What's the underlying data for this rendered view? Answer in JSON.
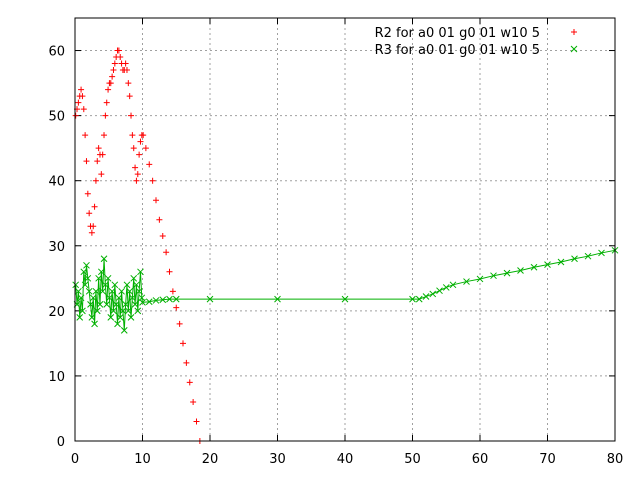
{
  "chart_data": {
    "type": "scatter",
    "title": "",
    "xlabel": "",
    "ylabel": "",
    "xlim": [
      0,
      80
    ],
    "ylim": [
      0,
      65
    ],
    "xticks": [
      0,
      10,
      20,
      30,
      40,
      50,
      60,
      70,
      80
    ],
    "yticks": [
      0,
      10,
      20,
      30,
      40,
      50,
      60
    ],
    "grid": true,
    "legend_position": "top-right",
    "series": [
      {
        "name": "R2 for a0 01 g0 01 w10 5",
        "color": "#ff0000",
        "marker": "plus",
        "line": false,
        "points": [
          [
            0.1,
            50
          ],
          [
            0.3,
            51
          ],
          [
            0.5,
            52
          ],
          [
            0.7,
            53
          ],
          [
            0.9,
            54
          ],
          [
            1.1,
            53
          ],
          [
            1.3,
            51
          ],
          [
            1.5,
            47
          ],
          [
            1.7,
            43
          ],
          [
            1.9,
            38
          ],
          [
            2.1,
            35
          ],
          [
            2.3,
            33
          ],
          [
            2.5,
            32
          ],
          [
            2.7,
            33
          ],
          [
            2.9,
            36
          ],
          [
            3.1,
            40
          ],
          [
            3.3,
            43
          ],
          [
            3.5,
            45
          ],
          [
            3.7,
            44
          ],
          [
            3.9,
            41
          ],
          [
            4.1,
            44
          ],
          [
            4.3,
            47
          ],
          [
            4.5,
            50
          ],
          [
            4.7,
            52
          ],
          [
            4.9,
            54
          ],
          [
            5.1,
            55
          ],
          [
            5.3,
            55
          ],
          [
            5.5,
            56
          ],
          [
            5.7,
            57
          ],
          [
            5.9,
            58
          ],
          [
            6.1,
            59
          ],
          [
            6.3,
            60
          ],
          [
            6.5,
            60
          ],
          [
            6.7,
            59
          ],
          [
            6.9,
            58
          ],
          [
            7.1,
            57
          ],
          [
            7.3,
            57
          ],
          [
            7.5,
            58
          ],
          [
            7.7,
            57
          ],
          [
            7.9,
            55
          ],
          [
            8.1,
            53
          ],
          [
            8.3,
            50
          ],
          [
            8.5,
            47
          ],
          [
            8.7,
            45
          ],
          [
            8.9,
            42
          ],
          [
            9.1,
            40
          ],
          [
            9.3,
            41
          ],
          [
            9.5,
            44
          ],
          [
            9.7,
            46
          ],
          [
            9.9,
            47
          ],
          [
            10.1,
            47
          ],
          [
            10.5,
            45
          ],
          [
            11.0,
            42.5
          ],
          [
            11.5,
            40
          ],
          [
            12.0,
            37
          ],
          [
            12.5,
            34
          ],
          [
            13.0,
            31.5
          ],
          [
            13.5,
            29
          ],
          [
            14.0,
            26
          ],
          [
            14.5,
            23
          ],
          [
            15.0,
            20.5
          ],
          [
            15.5,
            18
          ],
          [
            16.0,
            15
          ],
          [
            16.5,
            12
          ],
          [
            17.0,
            9
          ],
          [
            17.5,
            6
          ],
          [
            18.0,
            3
          ],
          [
            18.5,
            0
          ]
        ]
      },
      {
        "name": "R3 for a0 01 g0 01 w10 5",
        "color": "#00b000",
        "marker": "cross",
        "line": true,
        "points": [
          [
            0.1,
            24
          ],
          [
            0.3,
            21
          ],
          [
            0.5,
            23
          ],
          [
            0.7,
            19
          ],
          [
            0.9,
            22
          ],
          [
            1.1,
            20
          ],
          [
            1.3,
            26
          ],
          [
            1.5,
            24
          ],
          [
            1.7,
            27
          ],
          [
            1.9,
            25
          ],
          [
            2.1,
            23
          ],
          [
            2.3,
            21
          ],
          [
            2.5,
            19
          ],
          [
            2.7,
            22
          ],
          [
            2.9,
            18
          ],
          [
            3.1,
            23
          ],
          [
            3.3,
            20
          ],
          [
            3.5,
            25
          ],
          [
            3.7,
            21
          ],
          [
            3.9,
            26
          ],
          [
            4.1,
            23
          ],
          [
            4.3,
            28
          ],
          [
            4.5,
            24
          ],
          [
            4.7,
            21
          ],
          [
            4.9,
            25
          ],
          [
            5.1,
            22
          ],
          [
            5.3,
            19
          ],
          [
            5.5,
            23
          ],
          [
            5.7,
            20
          ],
          [
            5.9,
            24
          ],
          [
            6.1,
            21
          ],
          [
            6.3,
            18
          ],
          [
            6.5,
            22
          ],
          [
            6.7,
            19
          ],
          [
            6.9,
            23
          ],
          [
            7.1,
            20
          ],
          [
            7.3,
            17
          ],
          [
            7.5,
            21
          ],
          [
            7.7,
            24
          ],
          [
            7.9,
            20
          ],
          [
            8.1,
            23
          ],
          [
            8.3,
            19
          ],
          [
            8.5,
            22
          ],
          [
            8.7,
            25
          ],
          [
            8.9,
            21
          ],
          [
            9.1,
            24
          ],
          [
            9.3,
            20
          ],
          [
            9.5,
            23
          ],
          [
            9.7,
            26
          ],
          [
            9.9,
            22
          ],
          [
            10.0,
            21.3
          ],
          [
            11,
            21.4
          ],
          [
            12,
            21.6
          ],
          [
            13,
            21.7
          ],
          [
            14,
            21.8
          ],
          [
            15,
            21.8
          ],
          [
            20,
            21.8
          ],
          [
            30,
            21.8
          ],
          [
            40,
            21.8
          ],
          [
            50,
            21.8
          ],
          [
            51,
            21.8
          ],
          [
            52,
            22.2
          ],
          [
            53,
            22.6
          ],
          [
            54,
            23.1
          ],
          [
            55,
            23.6
          ],
          [
            56,
            24.0
          ],
          [
            58,
            24.5
          ],
          [
            60,
            24.9
          ],
          [
            62,
            25.4
          ],
          [
            64,
            25.8
          ],
          [
            66,
            26.2
          ],
          [
            68,
            26.7
          ],
          [
            70,
            27.1
          ],
          [
            72,
            27.5
          ],
          [
            74,
            28.0
          ],
          [
            76,
            28.4
          ],
          [
            78,
            28.9
          ],
          [
            80,
            29.3
          ]
        ]
      }
    ]
  }
}
